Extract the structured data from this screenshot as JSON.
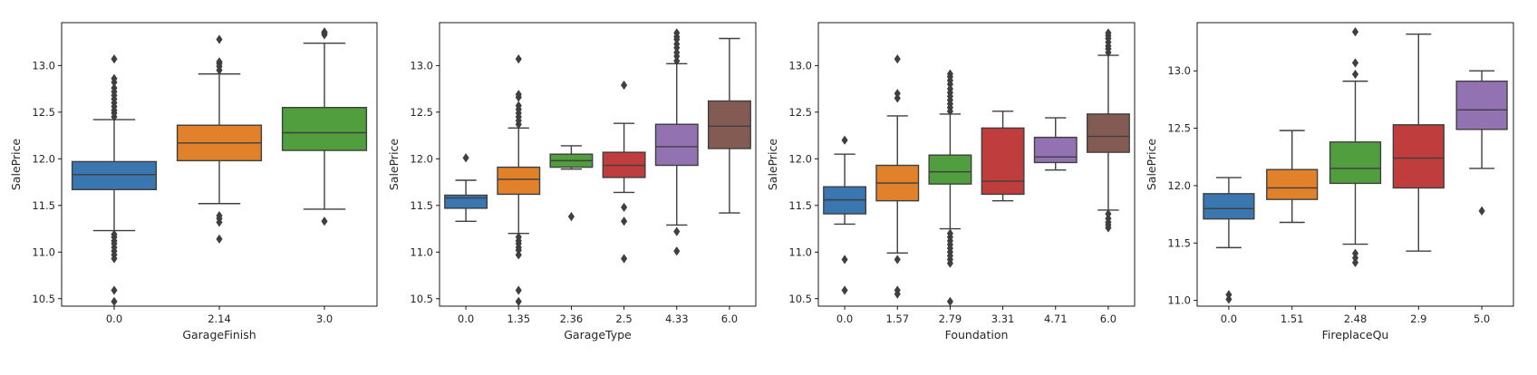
{
  "chart_data": [
    {
      "type": "box",
      "xlabel": "GarageFinish",
      "ylabel": "SalePrice",
      "ylim": [
        10.42,
        13.46
      ],
      "yticks": [
        10.5,
        11.0,
        11.5,
        12.0,
        12.5,
        13.0
      ],
      "grid": false,
      "boxes": [
        {
          "category": "0.0",
          "color": "#3a76af",
          "min": 11.23,
          "q1": 11.67,
          "median": 11.83,
          "q3": 11.97,
          "max": 12.42,
          "outliers": [
            10.47,
            10.59,
            10.93,
            10.97,
            11.01,
            11.05,
            11.09,
            11.12,
            11.16,
            11.19,
            12.45,
            12.49,
            12.52,
            12.56,
            12.6,
            12.64,
            12.68,
            12.72,
            12.76,
            12.82,
            12.86,
            13.07
          ]
        },
        {
          "category": "2.14",
          "color": "#e1822b",
          "min": 11.52,
          "q1": 11.98,
          "median": 12.17,
          "q3": 12.36,
          "max": 12.91,
          "outliers": [
            11.14,
            11.32,
            11.36,
            11.39,
            12.95,
            12.99,
            13.02,
            13.04,
            13.28
          ]
        },
        {
          "category": "3.0",
          "color": "#519e3e",
          "min": 11.46,
          "q1": 12.09,
          "median": 12.28,
          "q3": 12.55,
          "max": 13.24,
          "outliers": [
            11.33,
            13.33,
            13.35,
            13.36
          ]
        }
      ]
    },
    {
      "type": "box",
      "xlabel": "GarageType",
      "ylabel": "SalePrice",
      "ylim": [
        10.42,
        13.46
      ],
      "yticks": [
        10.5,
        11.0,
        11.5,
        12.0,
        12.5,
        13.0
      ],
      "grid": false,
      "boxes": [
        {
          "category": "0.0",
          "color": "#3a76af",
          "min": 11.33,
          "q1": 11.47,
          "median": 11.58,
          "q3": 11.61,
          "max": 11.77,
          "outliers": [
            12.01
          ]
        },
        {
          "category": "1.35",
          "color": "#e1822b",
          "min": 11.2,
          "q1": 11.62,
          "median": 11.78,
          "q3": 11.91,
          "max": 12.33,
          "outliers": [
            10.47,
            10.59,
            10.97,
            11.02,
            11.05,
            11.09,
            11.12,
            11.16,
            12.37,
            12.41,
            12.45,
            12.49,
            12.53,
            12.57,
            12.66,
            12.69,
            13.07
          ]
        },
        {
          "category": "2.36",
          "color": "#519e3e",
          "min": 11.89,
          "q1": 11.91,
          "median": 11.98,
          "q3": 12.05,
          "max": 12.14,
          "outliers": [
            11.38
          ]
        },
        {
          "category": "2.5",
          "color": "#c03d3e",
          "min": 11.64,
          "q1": 11.8,
          "median": 11.93,
          "q3": 12.07,
          "max": 12.38,
          "outliers": [
            10.93,
            11.33,
            11.48,
            12.79
          ]
        },
        {
          "category": "4.33",
          "color": "#9372b2",
          "min": 11.29,
          "q1": 11.93,
          "median": 12.13,
          "q3": 12.37,
          "max": 13.02,
          "outliers": [
            11.01,
            11.22,
            13.05,
            13.1,
            13.14,
            13.19,
            13.23,
            13.28,
            13.31,
            13.35
          ]
        },
        {
          "category": "6.0",
          "color": "#845b53",
          "min": 11.42,
          "q1": 12.11,
          "median": 12.35,
          "q3": 12.62,
          "max": 13.29,
          "outliers": []
        }
      ]
    },
    {
      "type": "box",
      "xlabel": "Foundation",
      "ylabel": "SalePrice",
      "ylim": [
        10.42,
        13.46
      ],
      "yticks": [
        10.5,
        11.0,
        11.5,
        12.0,
        12.5,
        13.0
      ],
      "grid": false,
      "boxes": [
        {
          "category": "0.0",
          "color": "#3a76af",
          "min": 11.3,
          "q1": 11.41,
          "median": 11.56,
          "q3": 11.7,
          "max": 12.05,
          "outliers": [
            10.59,
            10.92,
            12.2
          ]
        },
        {
          "category": "1.57",
          "color": "#e1822b",
          "min": 10.99,
          "q1": 11.55,
          "median": 11.74,
          "q3": 11.93,
          "max": 12.46,
          "outliers": [
            10.55,
            10.59,
            10.92,
            12.65,
            12.7,
            13.07
          ]
        },
        {
          "category": "2.79",
          "color": "#519e3e",
          "min": 11.25,
          "q1": 11.73,
          "median": 11.86,
          "q3": 12.04,
          "max": 12.48,
          "outliers": [
            10.47,
            10.88,
            10.92,
            10.96,
            11.0,
            11.04,
            11.08,
            11.12,
            11.16,
            11.2,
            12.51,
            12.55,
            12.59,
            12.63,
            12.67,
            12.71,
            12.75,
            12.8,
            12.84,
            12.88,
            12.91
          ]
        },
        {
          "category": "3.31",
          "color": "#c03d3e",
          "min": 11.55,
          "q1": 11.62,
          "median": 11.76,
          "q3": 12.33,
          "max": 12.51,
          "outliers": []
        },
        {
          "category": "4.71",
          "color": "#9372b2",
          "min": 11.88,
          "q1": 11.96,
          "median": 12.02,
          "q3": 12.23,
          "max": 12.44,
          "outliers": []
        },
        {
          "category": "6.0",
          "color": "#845b53",
          "min": 11.45,
          "q1": 12.07,
          "median": 12.24,
          "q3": 12.48,
          "max": 13.11,
          "outliers": [
            11.26,
            11.29,
            11.32,
            11.36,
            11.41,
            13.14,
            13.18,
            13.21,
            13.25,
            13.29,
            13.32,
            13.35
          ]
        }
      ]
    },
    {
      "type": "box",
      "xlabel": "FireplaceQu",
      "ylabel": "SalePrice",
      "ylim": [
        10.95,
        13.42
      ],
      "yticks": [
        11.0,
        11.5,
        12.0,
        12.5,
        13.0
      ],
      "grid": false,
      "boxes": [
        {
          "category": "0.0",
          "color": "#3a76af",
          "min": 11.46,
          "q1": 11.71,
          "median": 11.8,
          "q3": 11.93,
          "max": 12.07,
          "outliers": [
            11.01,
            11.05
          ]
        },
        {
          "category": "1.51",
          "color": "#e1822b",
          "min": 11.68,
          "q1": 11.88,
          "median": 11.98,
          "q3": 12.14,
          "max": 12.48,
          "outliers": []
        },
        {
          "category": "2.48",
          "color": "#519e3e",
          "min": 11.49,
          "q1": 12.02,
          "median": 12.15,
          "q3": 12.38,
          "max": 12.91,
          "outliers": [
            11.33,
            11.37,
            11.41,
            12.97,
            13.07,
            13.34
          ]
        },
        {
          "category": "2.9",
          "color": "#c03d3e",
          "min": 11.43,
          "q1": 11.98,
          "median": 12.24,
          "q3": 12.53,
          "max": 13.32,
          "outliers": []
        },
        {
          "category": "5.0",
          "color": "#9372b2",
          "min": 12.15,
          "q1": 12.49,
          "median": 12.66,
          "q3": 12.91,
          "max": 13.0,
          "outliers": [
            11.78
          ]
        }
      ]
    }
  ]
}
